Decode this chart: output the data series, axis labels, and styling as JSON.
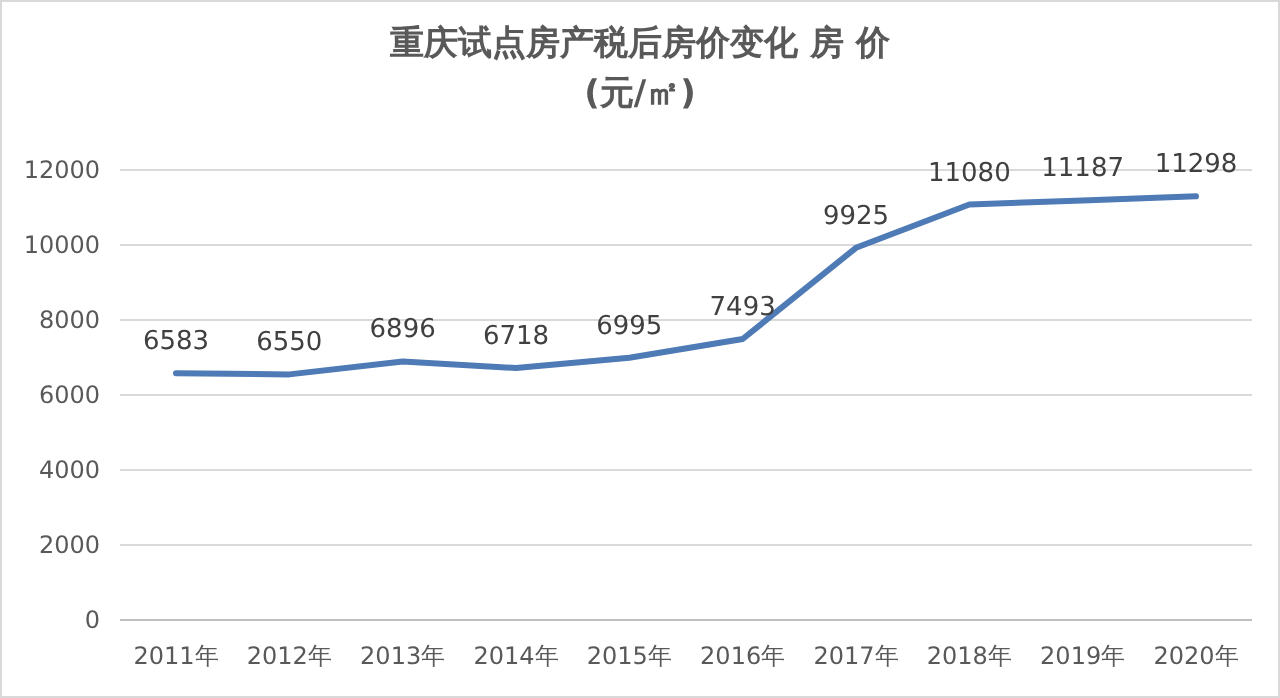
{
  "chart_data": {
    "type": "line",
    "title": "重庆试点房产税后房价变化 房 价",
    "subtitle": "(元/㎡)",
    "categories": [
      "2011年",
      "2012年",
      "2013年",
      "2014年",
      "2015年",
      "2016年",
      "2017年",
      "2018年",
      "2019年",
      "2020年"
    ],
    "series": [
      {
        "color": "#4e7ab5",
        "values": [
          6583,
          6550,
          6896,
          6718,
          6995,
          7493,
          9925,
          11080,
          11187,
          11298
        ]
      }
    ],
    "ylim": [
      0,
      12000
    ],
    "yticks": [
      0,
      2000,
      4000,
      6000,
      8000,
      10000,
      12000
    ],
    "grid": "y",
    "data_labels": true,
    "marker": "none",
    "line_style": "solid"
  }
}
